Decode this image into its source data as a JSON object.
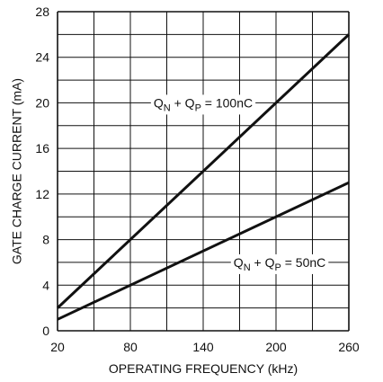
{
  "chart_data": {
    "type": "line",
    "title": "",
    "xlabel": "OPERATING FREQUENCY (kHz)",
    "ylabel": "GATE CHARGE CURRENT (mA)",
    "xlim": [
      20,
      260
    ],
    "ylim": [
      0,
      28
    ],
    "x_ticks": [
      "20",
      "80",
      "140",
      "200",
      "260"
    ],
    "y_ticks": [
      "0",
      "4",
      "8",
      "12",
      "16",
      "20",
      "24",
      "28"
    ],
    "x_grid_step": 30,
    "y_grid_step": 2,
    "grid": true,
    "legend": "none",
    "series": [
      {
        "x": [
          20,
          260
        ],
        "y": [
          2,
          26
        ]
      },
      {
        "x": [
          20,
          260
        ],
        "y": [
          1,
          13
        ]
      }
    ],
    "annotations": [
      {
        "main1": "Q",
        "sub1": "N",
        "mid": " + Q",
        "sub2": "P",
        "tail": " = 100nC",
        "x": 140,
        "y": 20
      },
      {
        "main1": "Q",
        "sub1": "N",
        "mid": " + Q",
        "sub2": "P",
        "tail": " = 50nC",
        "x": 203,
        "y": 6
      }
    ],
    "colors": {
      "line": "#111111",
      "grid": "#111111"
    }
  }
}
